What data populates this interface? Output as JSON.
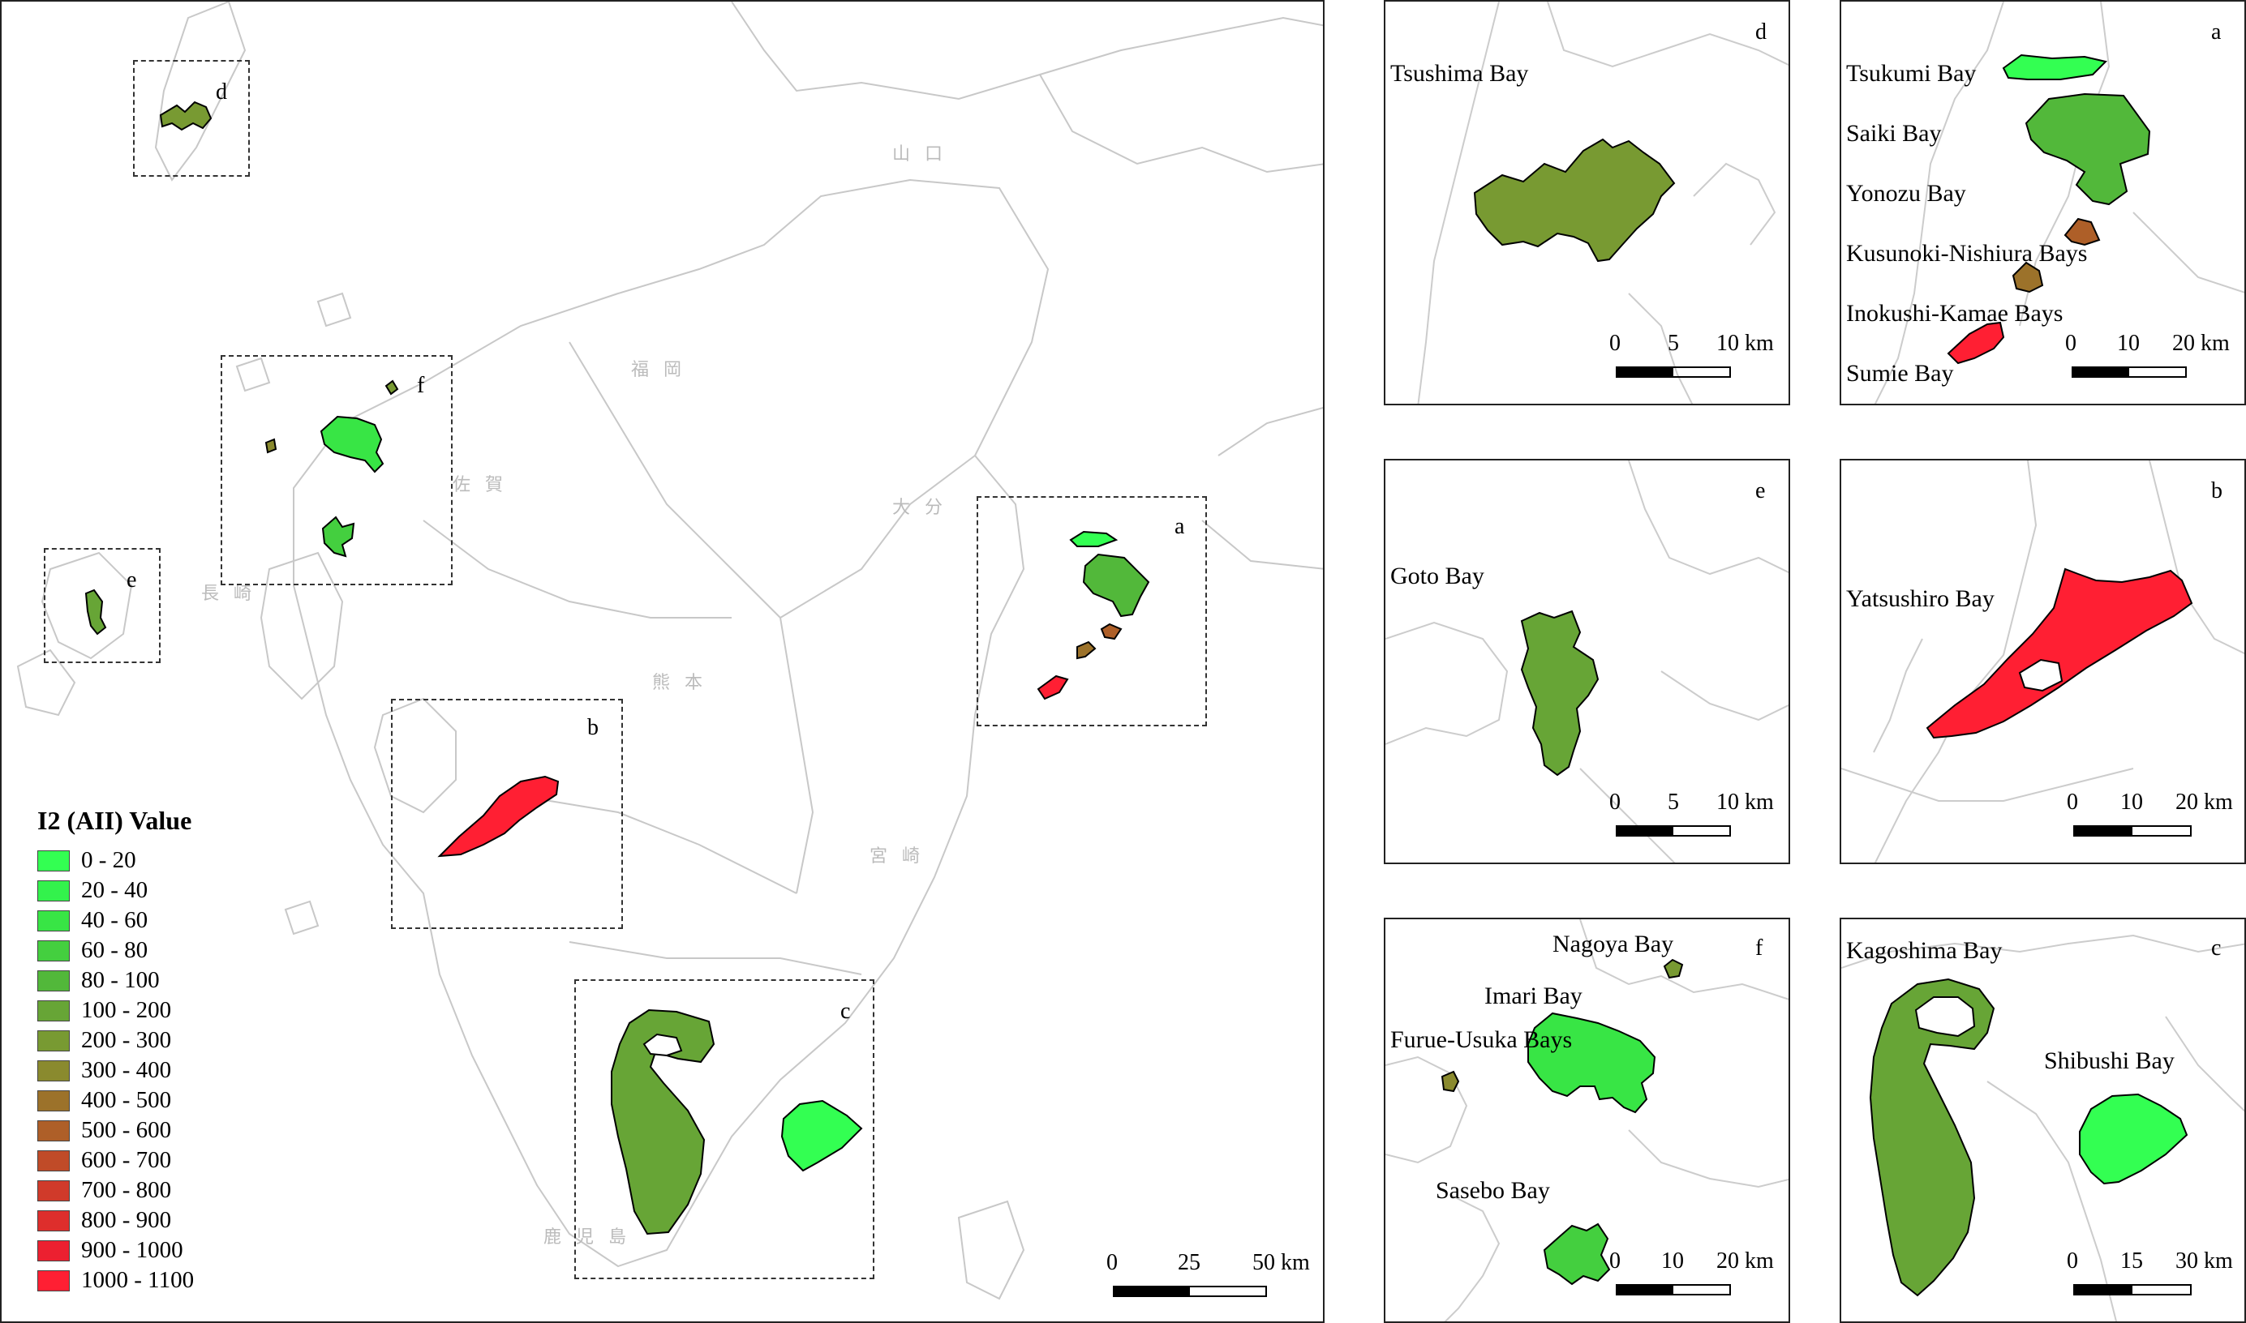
{
  "legend": {
    "title": "I2 (AII) Value",
    "items": [
      {
        "label": "0 - 20",
        "color": "#33ff52"
      },
      {
        "label": "20 - 40",
        "color": "#33f24c"
      },
      {
        "label": "40 - 60",
        "color": "#38e545"
      },
      {
        "label": "60 - 80",
        "color": "#44cf3f"
      },
      {
        "label": "80 - 100",
        "color": "#52b83a"
      },
      {
        "label": "100 - 200",
        "color": "#67a536"
      },
      {
        "label": "200 - 300",
        "color": "#789a32"
      },
      {
        "label": "300 - 400",
        "color": "#8a8a2e"
      },
      {
        "label": "400 - 500",
        "color": "#9c722a"
      },
      {
        "label": "500 - 600",
        "color": "#ae5f28"
      },
      {
        "label": "600 - 700",
        "color": "#c04b28"
      },
      {
        "label": "700 - 800",
        "color": "#d03a2a"
      },
      {
        "label": "800 - 900",
        "color": "#de2e2c"
      },
      {
        "label": "900 - 1000",
        "color": "#ec2030"
      },
      {
        "label": "1000 - 1100",
        "color": "#ff1f33"
      }
    ]
  },
  "main_map": {
    "insets": [
      "d",
      "f",
      "e",
      "a",
      "b",
      "c"
    ],
    "prefectures": [
      "山口",
      "福岡",
      "佐賀",
      "長崎",
      "熊本",
      "大分",
      "宮崎",
      "鹿児島"
    ],
    "scale": {
      "ticks": [
        "0",
        "25",
        "50 km"
      ]
    }
  },
  "panels": {
    "d": {
      "letter": "d",
      "bays": [
        "Tsushima Bay"
      ],
      "scale": [
        "0",
        "5",
        "10 km"
      ]
    },
    "a": {
      "letter": "a",
      "bays": [
        "Tsukumi Bay",
        "Saiki Bay",
        "Yonozu Bay",
        "Kusunoki-Nishiura Bays",
        "Inokushi-Kamae Bays",
        "Sumie Bay"
      ],
      "scale": [
        "0",
        "10",
        "20 km"
      ]
    },
    "e": {
      "letter": "e",
      "bays": [
        "Goto Bay"
      ],
      "scale": [
        "0",
        "5",
        "10 km"
      ]
    },
    "b": {
      "letter": "b",
      "bays": [
        "Yatsushiro Bay"
      ],
      "scale": [
        "0",
        "10",
        "20 km"
      ]
    },
    "f": {
      "letter": "f",
      "bays": [
        "Nagoya Bay",
        "Imari Bay",
        "Furue-Usuka Bays",
        "Sasebo Bay"
      ],
      "scale": [
        "0",
        "10",
        "20 km"
      ]
    },
    "c": {
      "letter": "c",
      "bays": [
        "Kagoshima Bay",
        "Shibushi Bay"
      ],
      "scale": [
        "0",
        "15",
        "30 km"
      ]
    }
  }
}
